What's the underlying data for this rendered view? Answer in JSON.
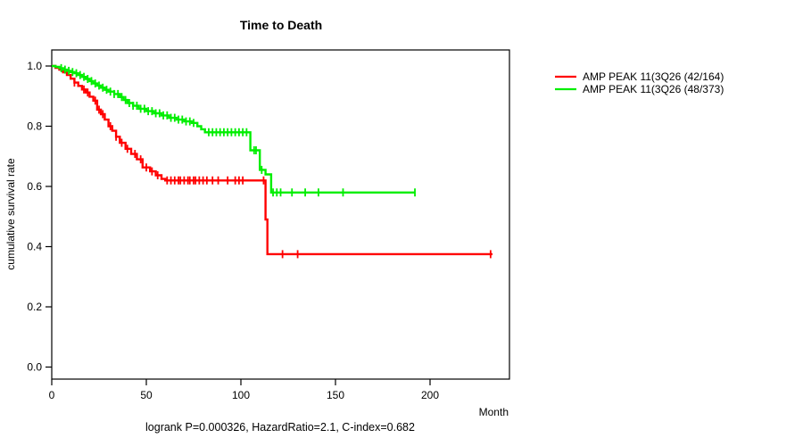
{
  "chart_data": {
    "type": "line",
    "subtype": "kaplan-meier-step",
    "title": "Time to Death",
    "xlabel": "Month",
    "ylabel": "cumulative survival rate",
    "annotation": "logrank P=0.000326, HazardRatio=2.1, C-index=0.682",
    "xlim": [
      0,
      242
    ],
    "ylim": [
      0,
      1
    ],
    "xticks": [
      0,
      50,
      100,
      150,
      200
    ],
    "yticks": [
      "0.0",
      "0.2",
      "0.4",
      "0.6",
      "0.8",
      "1.0"
    ],
    "grid": false,
    "legend_position": "right-outside",
    "series": [
      {
        "name": "AMP PEAK 11(3Q26 (42/164)",
        "color": "#ff0000",
        "steps": [
          [
            0,
            1.0
          ],
          [
            2,
            0.994
          ],
          [
            4,
            0.988
          ],
          [
            6,
            0.979
          ],
          [
            8,
            0.97
          ],
          [
            10,
            0.958
          ],
          [
            12,
            0.945
          ],
          [
            14,
            0.934
          ],
          [
            16,
            0.922
          ],
          [
            18,
            0.912
          ],
          [
            20,
            0.898
          ],
          [
            22,
            0.885
          ],
          [
            24,
            0.855
          ],
          [
            26,
            0.84
          ],
          [
            28,
            0.822
          ],
          [
            30,
            0.8
          ],
          [
            32,
            0.785
          ],
          [
            34,
            0.765
          ],
          [
            36,
            0.745
          ],
          [
            39,
            0.725
          ],
          [
            42,
            0.708
          ],
          [
            45,
            0.69
          ],
          [
            48,
            0.663
          ],
          [
            52,
            0.65
          ],
          [
            55,
            0.637
          ],
          [
            58,
            0.625
          ],
          [
            60,
            0.62
          ],
          [
            113,
            0.49
          ],
          [
            114,
            0.375
          ]
        ],
        "end_month": 233,
        "censor_months": [
          12,
          17,
          19,
          23,
          25,
          27,
          31,
          34,
          37,
          40,
          44,
          47,
          50,
          53,
          56,
          61,
          63,
          65,
          67,
          68,
          70,
          72,
          73,
          75,
          76,
          78,
          80,
          82,
          85,
          88,
          93,
          97,
          99,
          101,
          112,
          122,
          130,
          232
        ]
      },
      {
        "name": "AMP PEAK 11(3Q26 (48/373)",
        "color": "#00ee00",
        "steps": [
          [
            0,
            1.0
          ],
          [
            2,
            0.997
          ],
          [
            4,
            0.993
          ],
          [
            6,
            0.988
          ],
          [
            8,
            0.984
          ],
          [
            10,
            0.98
          ],
          [
            12,
            0.976
          ],
          [
            14,
            0.97
          ],
          [
            16,
            0.964
          ],
          [
            18,
            0.957
          ],
          [
            20,
            0.95
          ],
          [
            22,
            0.942
          ],
          [
            24,
            0.935
          ],
          [
            26,
            0.928
          ],
          [
            28,
            0.921
          ],
          [
            30,
            0.915
          ],
          [
            33,
            0.907
          ],
          [
            36,
            0.897
          ],
          [
            38,
            0.887
          ],
          [
            40,
            0.877
          ],
          [
            43,
            0.868
          ],
          [
            46,
            0.858
          ],
          [
            50,
            0.85
          ],
          [
            54,
            0.843
          ],
          [
            58,
            0.836
          ],
          [
            62,
            0.828
          ],
          [
            66,
            0.822
          ],
          [
            70,
            0.816
          ],
          [
            74,
            0.811
          ],
          [
            77,
            0.8
          ],
          [
            79,
            0.79
          ],
          [
            81,
            0.78
          ],
          [
            105,
            0.72
          ],
          [
            110,
            0.655
          ],
          [
            113,
            0.64
          ],
          [
            116,
            0.58
          ]
        ],
        "end_month": 192,
        "censor_months": [
          5,
          7,
          9,
          11,
          13,
          15,
          17,
          19,
          21,
          23,
          25,
          27,
          29,
          31,
          33,
          35,
          37,
          39,
          41,
          43,
          45,
          47,
          49,
          51,
          53,
          55,
          57,
          59,
          61,
          63,
          65,
          67,
          69,
          71,
          73,
          75,
          83,
          85,
          87,
          89,
          91,
          93,
          95,
          97,
          99,
          101,
          103,
          107,
          108,
          111,
          117,
          119,
          121,
          127,
          134,
          141,
          154,
          192
        ]
      }
    ]
  }
}
